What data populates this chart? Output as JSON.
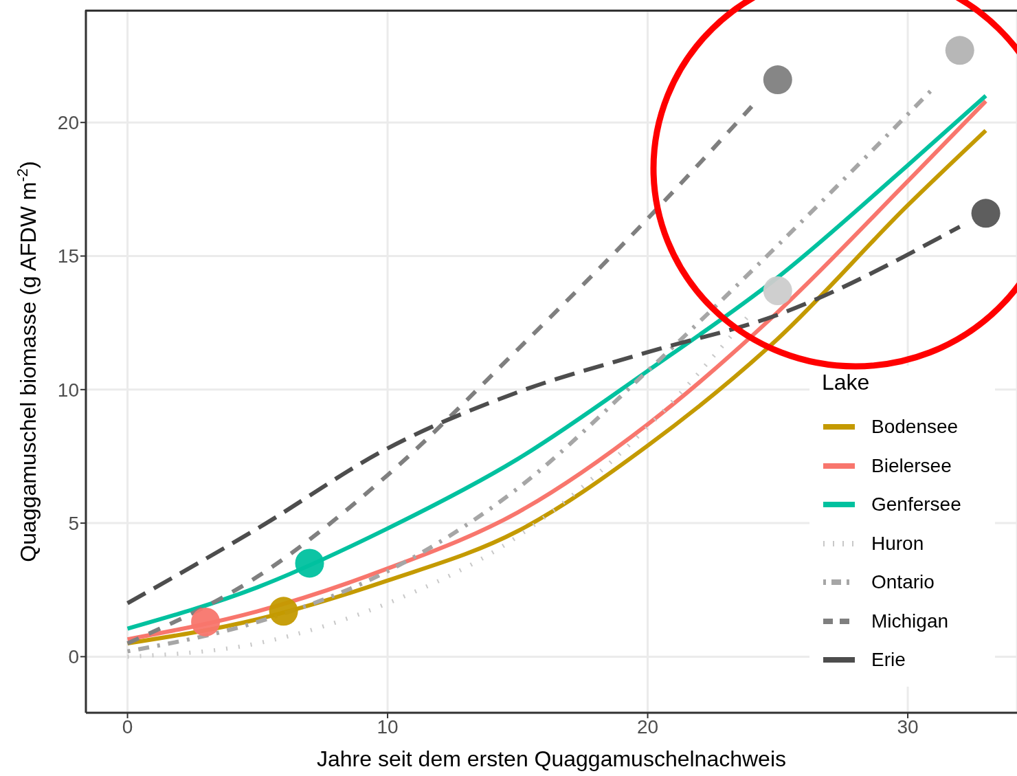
{
  "chart_data": {
    "type": "line",
    "xlabel": "Jahre seit dem ersten Quaggamuschelnachweis",
    "ylabel": "Quaggamuschel biomasse (g AFDW m$^{-2}$)",
    "legend_title": "Lake",
    "legend": "right",
    "grid": true,
    "xlim": [
      -1.6,
      34.2
    ],
    "ylim": [
      -2.1,
      24.2
    ],
    "xticks": [
      0,
      10,
      20,
      30
    ],
    "yticks": [
      0,
      5,
      10,
      15,
      20
    ],
    "series": [
      {
        "name": "Bodensee",
        "color": "#c49a00",
        "line_style": "solid",
        "x": [
          0,
          5,
          10,
          15,
          20,
          25,
          30,
          33
        ],
        "values": [
          0.5,
          1.4,
          2.85,
          4.7,
          7.9,
          11.9,
          16.9,
          19.7
        ]
      },
      {
        "name": "Bielersee",
        "color": "#f8766d",
        "line_style": "solid",
        "x": [
          0,
          5,
          10,
          15,
          20,
          25,
          30,
          33
        ],
        "values": [
          0.65,
          1.7,
          3.3,
          5.4,
          8.7,
          12.9,
          17.8,
          20.8
        ]
      },
      {
        "name": "Genfersee",
        "color": "#00c19f",
        "line_style": "solid",
        "x": [
          0,
          5,
          10,
          15,
          20,
          25,
          30,
          33
        ],
        "values": [
          1.05,
          2.6,
          4.8,
          7.4,
          10.7,
          14.2,
          18.4,
          21.0
        ]
      },
      {
        "name": "Huron",
        "color": "#c8c8c8",
        "line_style": "dotted",
        "x": [
          0,
          5,
          10,
          15,
          20,
          24
        ],
        "values": [
          0,
          0.5,
          2.0,
          4.5,
          8.6,
          12.9
        ]
      },
      {
        "name": "Ontario",
        "color": "#a6a6a6",
        "line_style": "dashdot",
        "x": [
          0,
          5,
          10,
          15,
          20,
          25,
          31
        ],
        "values": [
          0.2,
          1.3,
          3.2,
          6.3,
          10.7,
          15.4,
          21.3
        ]
      },
      {
        "name": "Michigan",
        "color": "#7f7f7f",
        "line_style": "dashed",
        "x": [
          0,
          5,
          10,
          15,
          20,
          24
        ],
        "values": [
          0.5,
          3.0,
          6.8,
          11.5,
          16.4,
          20.6
        ]
      },
      {
        "name": "Erie",
        "color": "#4d4d4d",
        "line_style": "longdash",
        "x": [
          0,
          5,
          10,
          15,
          20,
          25,
          32
        ],
        "values": [
          2.0,
          4.8,
          7.8,
          9.9,
          11.4,
          12.8,
          16.1
        ]
      },
      {
        "type": "scatter",
        "marker": "circle",
        "x": [
          6,
          3,
          7,
          25,
          32,
          25,
          33
        ],
        "values": [
          1.7,
          1.3,
          3.5,
          13.7,
          22.7,
          21.6,
          16.6
        ],
        "colors": [
          "#c49a00",
          "#f8766d",
          "#00c19f",
          "#cccccc",
          "#b3b3b3",
          "#7f7f7f",
          "#555555"
        ]
      }
    ]
  }
}
